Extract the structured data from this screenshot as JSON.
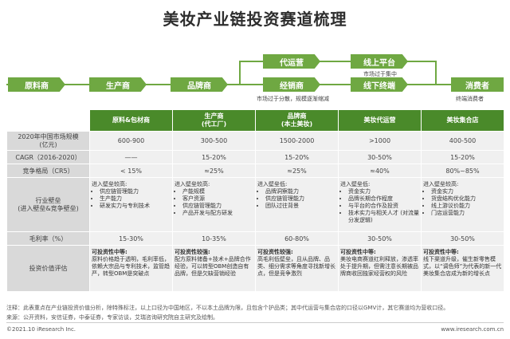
{
  "title": "美妆产业链投资赛道梳理",
  "flow": {
    "raw": "原料商",
    "producer": "生产商",
    "brand": "品牌商",
    "agency": "代运营",
    "online": "线上平台",
    "distributor": "经销商",
    "offline": "线下终端",
    "consumer": "消费者",
    "note_online": "市场过于集中",
    "note_distributor": "市场过于分散，规模逐渐缩减",
    "note_consumer": "终端消费者"
  },
  "table": {
    "headers": [
      "原料&包材商",
      "生产商\n(代工厂)",
      "品牌商\n(本土美妆)",
      "美妆代运营",
      "美妆集合店"
    ],
    "rows": [
      {
        "label": "2020年中国市场规模\n(亿元)",
        "values": [
          "600-900",
          "300-500",
          "1500-2000",
          ">1000",
          "400-500"
        ]
      },
      {
        "label": "CAGR（2016-2020）",
        "values": [
          "——",
          "15-20%",
          "15-20%",
          "30-50%",
          "15-20%"
        ]
      },
      {
        "label": "竞争格局（CR5）",
        "values": [
          "< 15%",
          "≈25%",
          "≈25%",
          "≈40%",
          "80%~85%"
        ]
      }
    ],
    "barrier_label": "行业壁垒\n(进入壁垒&竞争壁垒)",
    "barriers": [
      {
        "head": "进入壁垒较高:",
        "items": [
          "供应链管理能力",
          "生产能力",
          "研发实力与专利技术"
        ]
      },
      {
        "head": "进入壁垒较高:",
        "items": [
          "产能规模",
          "客户资源",
          "供应链管理能力",
          "产品开发与配方研发"
        ]
      },
      {
        "head": "进入壁垒低:",
        "items": [
          "品牌洞察能力",
          "供应链管理能力",
          "团队过往背景"
        ]
      },
      {
        "head": "进入壁垒低:",
        "items": [
          "资金实力",
          "品牌长期合作程度",
          "与平台的合作及投资",
          "技术实力与相关人才 (对流量分发逻辑)"
        ]
      },
      {
        "head": "进入壁垒较高:",
        "items": [
          "资金实力",
          "货盘结构优化能力",
          "线上游议价能力",
          "门店运营能力"
        ]
      }
    ],
    "margin_label": "毛利率（%）",
    "margins": [
      "15-30%",
      "10-35%",
      "60-80%",
      "30-50%",
      "30-50%"
    ],
    "invest_label": "投资价值评估",
    "invest": [
      {
        "head": "可投资性中等:",
        "text": "原料价格趋于透明，毛利率低，依赖大宗品与专利技术，监管趋严，转型OBM是突破点"
      },
      {
        "head": "可投资性较强:",
        "text": "配方原料储备+技术+品牌合作经验，可以转型OBM创造自有品牌，但是欠缺营销经验"
      },
      {
        "head": "可投资性较强:",
        "text": "高毛利低壁垒，且从品牌、品类、细分需求等角度寻找新增长点，但是竞争激烈"
      },
      {
        "head": "可投资性中等:",
        "text": "美妆电商赛道红利释放，渗透率处于提升期，但需注意长期被品牌商收回独家经营权的风险"
      },
      {
        "head": "可投资性中等:",
        "text": "线下渠道升级，催生新零售模式，以“调色师”为代表的新一代美妆集合店成为新的增长点"
      }
    ]
  },
  "footnote": "注释：此表重点在产业链投资价值分析，除特殊标注，以上口径为中国地区，不以本土品牌为限，且包含个护品类；其中代运营与集合店的口径以GMV计，其它赛道均为营收口径。",
  "source": "来源：公开资料，安信证券，中泰证券，专家访谈，艾瑞咨询研究院自主研究及绘制。",
  "copyright": "©2021.10 iResearch Inc.",
  "website": "www.iresearch.com.cn"
}
